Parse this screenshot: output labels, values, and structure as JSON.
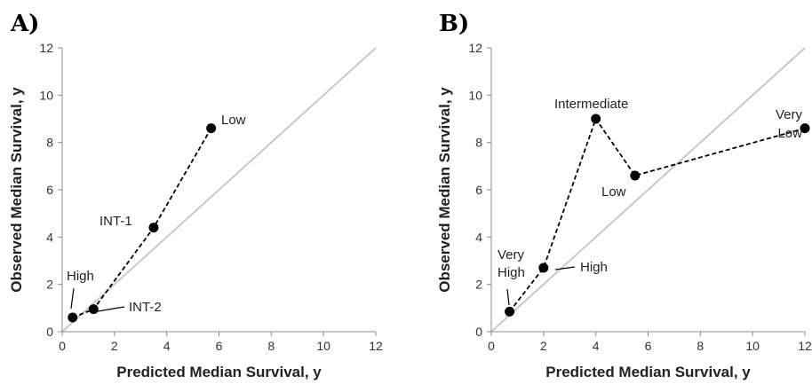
{
  "chart_data": [
    {
      "type": "line",
      "panel_label": "A)",
      "xlabel": "Predicted Median Survival, y",
      "ylabel": "Observed Median Survival, y",
      "xlim": [
        0,
        12
      ],
      "ylim": [
        0,
        12
      ],
      "x_ticks": [
        "0",
        "2",
        "4",
        "6",
        "8",
        "10",
        "12"
      ],
      "y_ticks": [
        "0",
        "2",
        "4",
        "6",
        "8",
        "10",
        "12"
      ],
      "grid": false,
      "reference_line": "identity",
      "points": [
        {
          "label": "High",
          "x": 0.4,
          "y": 0.6
        },
        {
          "label": "INT-2",
          "x": 1.2,
          "y": 0.95
        },
        {
          "label": "INT-1",
          "x": 3.5,
          "y": 4.4
        },
        {
          "label": "Low",
          "x": 5.7,
          "y": 8.6
        }
      ]
    },
    {
      "type": "line",
      "panel_label": "B)",
      "xlabel": "Predicted Median Survival, y",
      "ylabel": "Observed Median Survival, y",
      "xlim": [
        0,
        12
      ],
      "ylim": [
        0,
        12
      ],
      "x_ticks": [
        "0",
        "2",
        "4",
        "6",
        "8",
        "10",
        "12"
      ],
      "y_ticks": [
        "0",
        "2",
        "4",
        "6",
        "8",
        "10",
        "12"
      ],
      "grid": false,
      "reference_line": "identity",
      "points": [
        {
          "label": "Very High",
          "x": 0.7,
          "y": 0.85
        },
        {
          "label": "High",
          "x": 2.0,
          "y": 2.7
        },
        {
          "label": "Intermediate",
          "x": 4.0,
          "y": 9.0
        },
        {
          "label": "Low",
          "x": 5.5,
          "y": 6.6
        },
        {
          "label": "Very Low",
          "x": 12.0,
          "y": 8.6
        }
      ]
    }
  ]
}
